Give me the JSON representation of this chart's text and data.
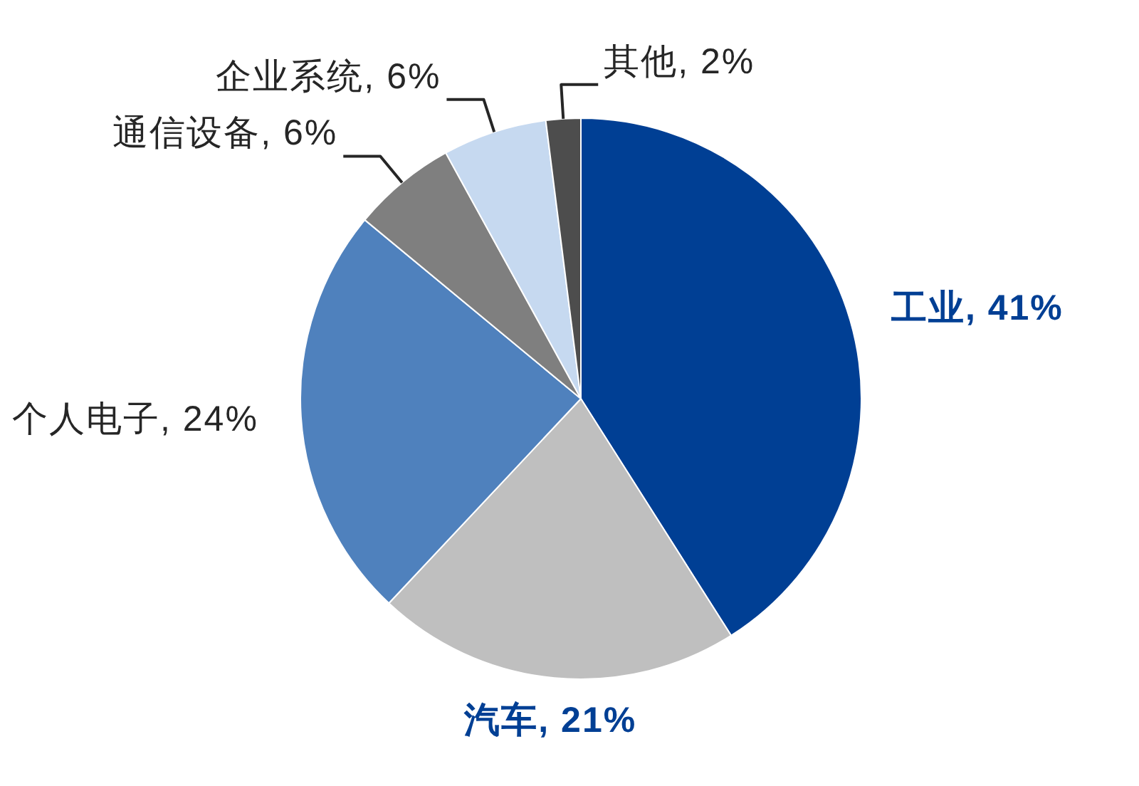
{
  "chart_data": {
    "type": "pie",
    "categories": [
      "工业",
      "汽车",
      "个人电子",
      "通信设备",
      "企业系统",
      "其他"
    ],
    "values": [
      41,
      21,
      24,
      6,
      6,
      2
    ],
    "colors": [
      "#003f94",
      "#bfbfbf",
      "#4f81bd",
      "#7f7f7f",
      "#c6d9f0",
      "#4d4d4d"
    ],
    "value_labels": [
      "41%",
      "21%",
      "24%",
      "6%",
      "6%",
      "2%"
    ]
  }
}
